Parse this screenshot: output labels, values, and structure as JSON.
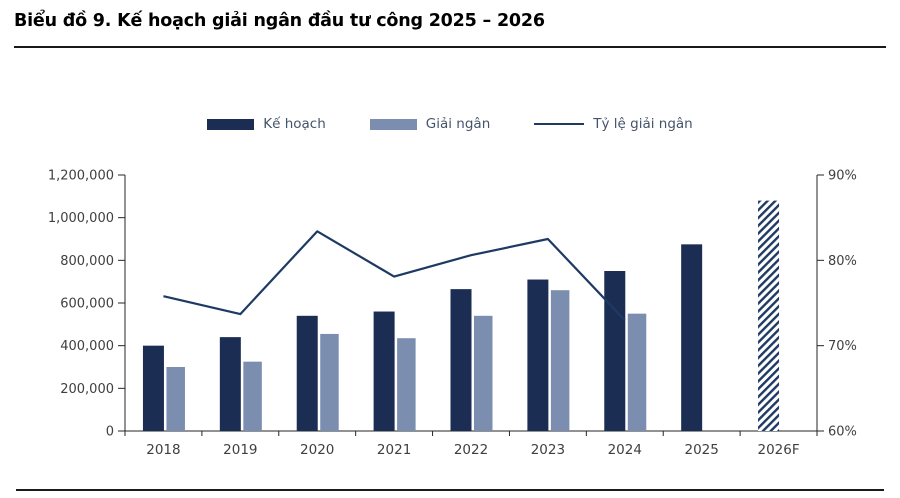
{
  "title": "Biểu đồ 9. Kế hoạch giải ngân đầu tư công 2025 – 2026",
  "chart_data": {
    "type": "bar",
    "subtype": "combo-bar-line",
    "title": "Biểu đồ 9. Kế hoạch giải ngân đầu tư công 2025 – 2026",
    "categories": [
      "2018",
      "2019",
      "2020",
      "2021",
      "2022",
      "2023",
      "2024",
      "2025",
      "2026F"
    ],
    "series": [
      {
        "name": "Kế hoạch",
        "type": "bar",
        "color": "#1b2d52",
        "axis": "left",
        "values": [
          400000,
          440000,
          540000,
          560000,
          665000,
          710000,
          750000,
          875000,
          1080000
        ],
        "hatched": [
          "2026F"
        ]
      },
      {
        "name": "Giải ngân",
        "type": "bar",
        "color": "#7b8eb0",
        "axis": "left",
        "values": [
          300000,
          325000,
          455000,
          435000,
          540000,
          660000,
          550000,
          null,
          null
        ]
      },
      {
        "name": "Tỷ lệ giải ngân",
        "type": "line",
        "color": "#1e3a64",
        "axis": "right",
        "unit": "%",
        "values": [
          75.8,
          73.7,
          83.4,
          78.1,
          80.6,
          82.5,
          73.0,
          null,
          null
        ]
      }
    ],
    "left_axis": {
      "min": 0,
      "max": 1200000,
      "step": 200000,
      "tick_labels": [
        "0",
        "200,000",
        "400,000",
        "600,000",
        "800,000",
        "1,000,000",
        "1,200,000"
      ]
    },
    "right_axis": {
      "min": 60,
      "max": 90,
      "step": 10,
      "tick_labels": [
        "60%",
        "70%",
        "80%",
        "90%"
      ]
    },
    "grid": false,
    "legend_position": "top",
    "axis_color": "#262626",
    "tick_label_color": "#404040"
  }
}
